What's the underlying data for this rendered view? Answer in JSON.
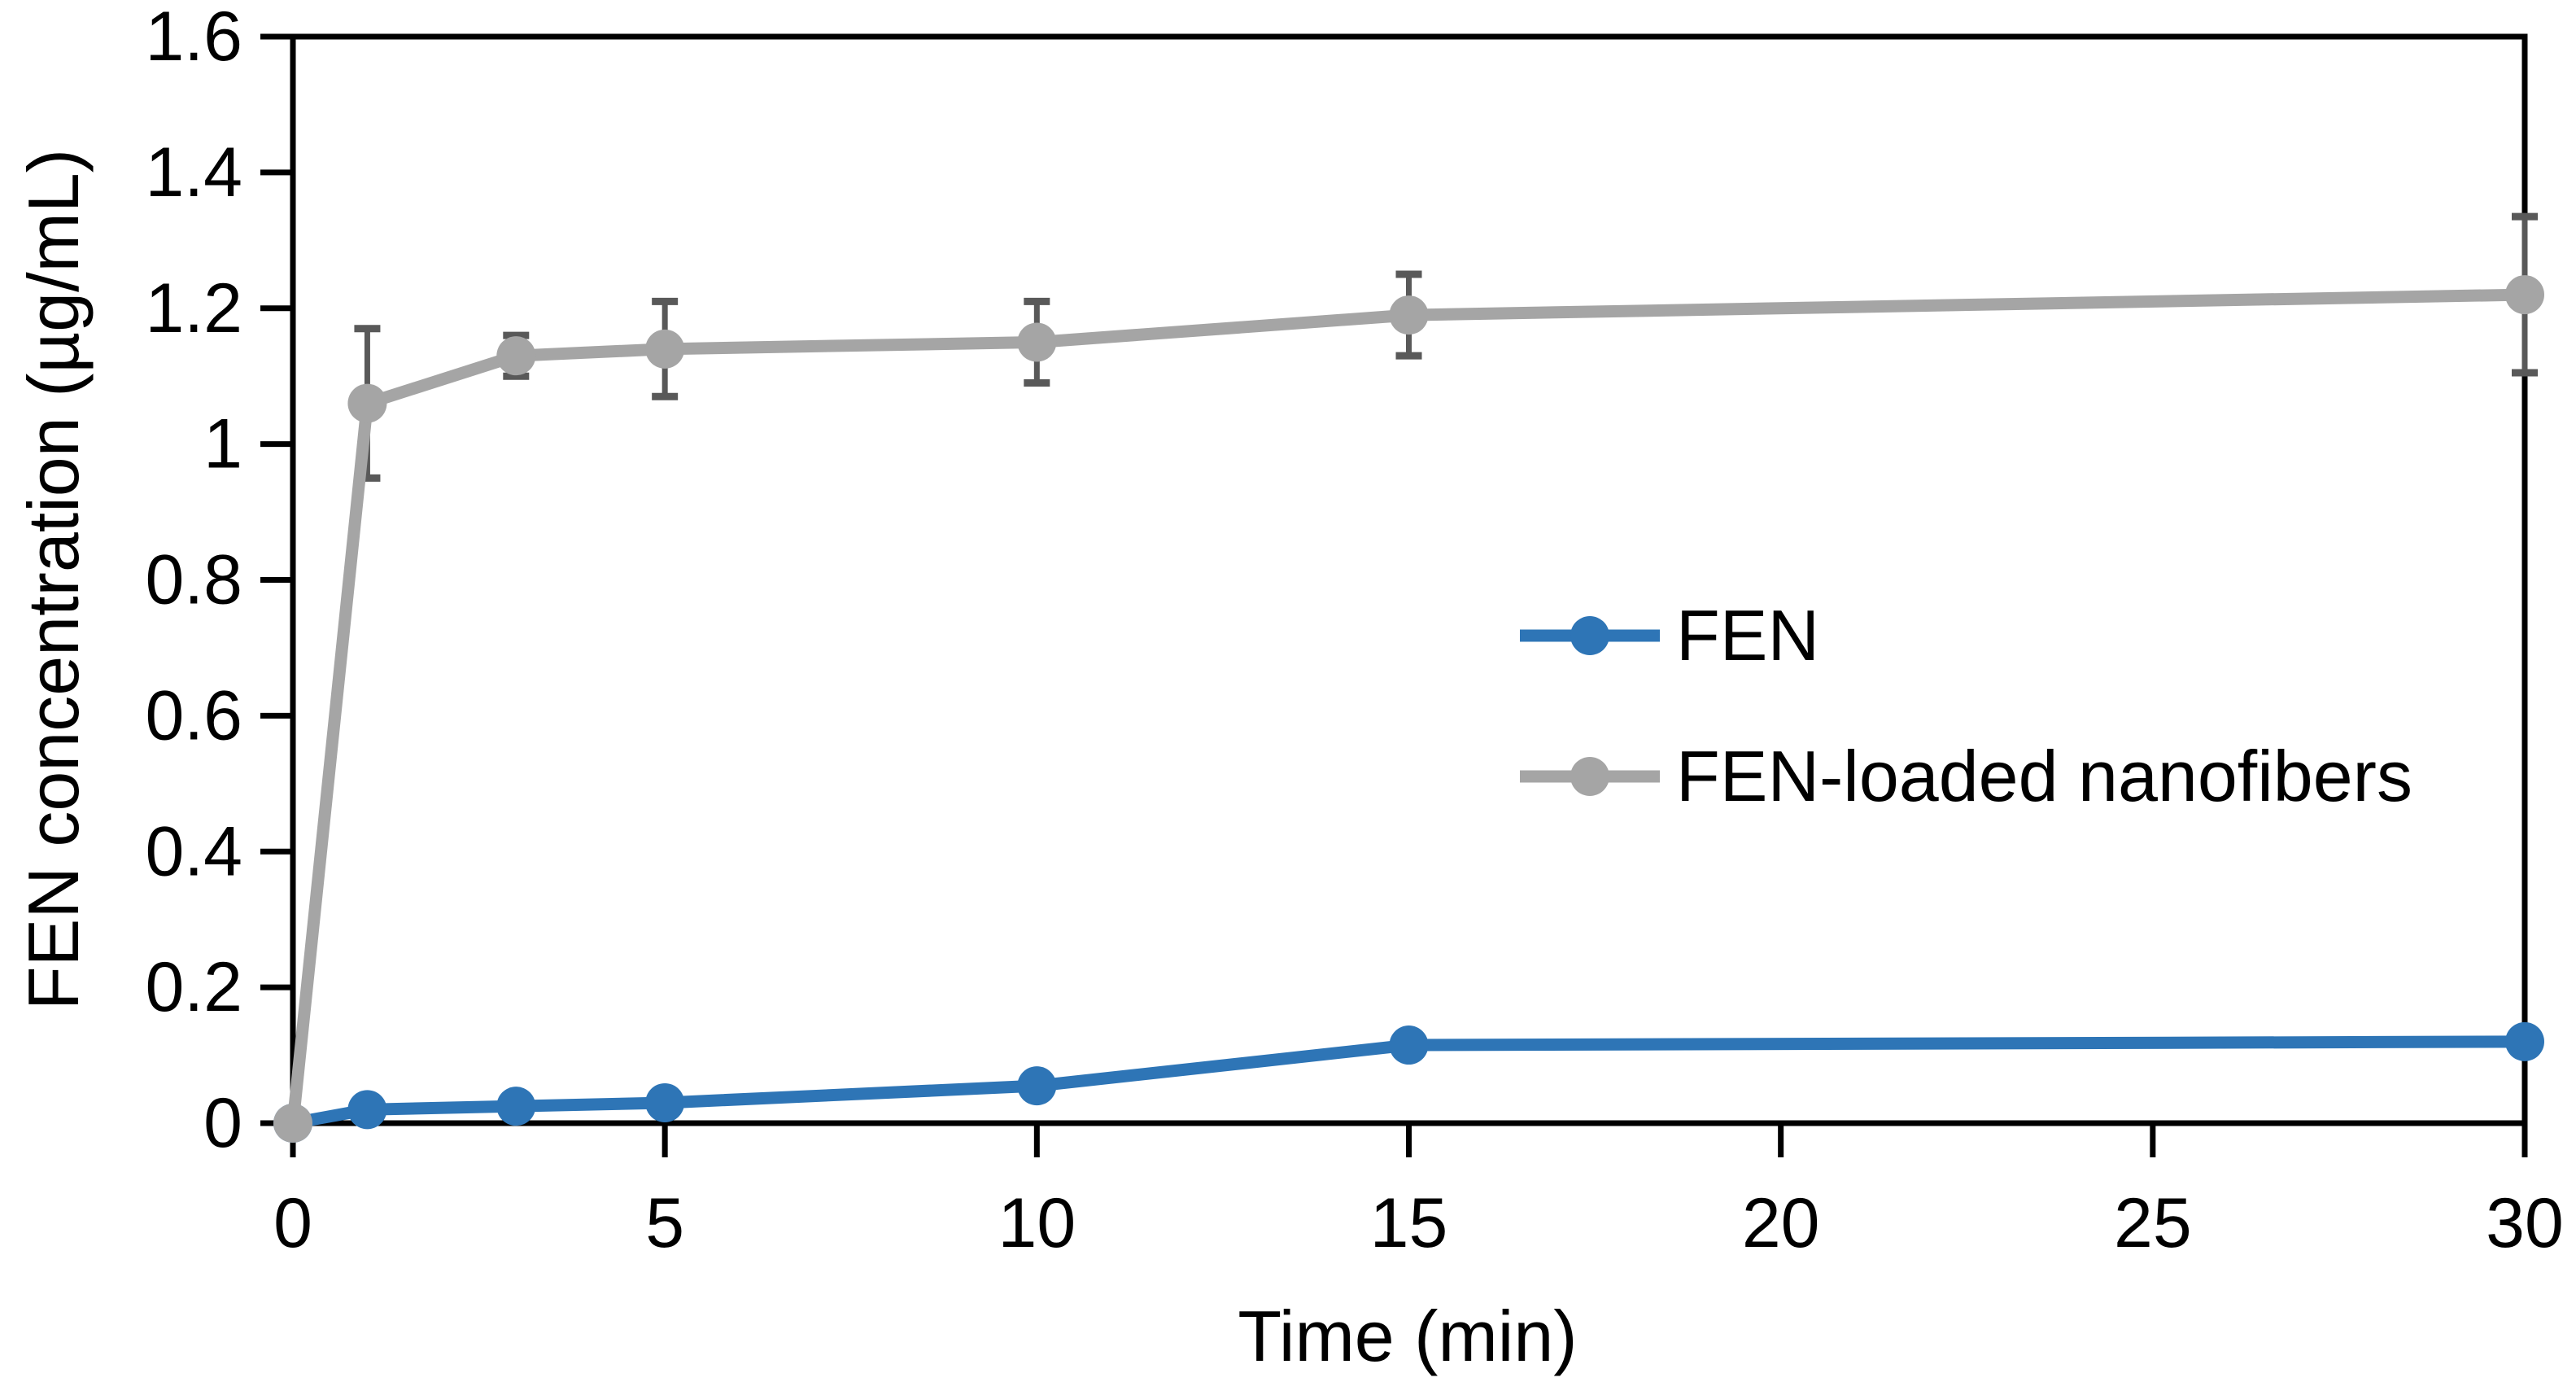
{
  "chart_data": {
    "type": "line",
    "title": "",
    "xlabel": "Time (min)",
    "ylabel": "FEN concentration (µg/mL)",
    "xlim": [
      0,
      30
    ],
    "ylim": [
      0,
      1.6
    ],
    "xticks": [
      0,
      5,
      10,
      15,
      20,
      25,
      30
    ],
    "xtick_labels": [
      "0",
      "5",
      "10",
      "15",
      "20",
      "25",
      "30"
    ],
    "yticks": [
      0,
      0.2,
      0.4,
      0.6,
      0.8,
      1,
      1.2,
      1.4,
      1.6
    ],
    "ytick_labels": [
      "0",
      "0.2",
      "0.4",
      "0.6",
      "0.8",
      "1",
      "1.2",
      "1.4",
      "1.6"
    ],
    "grid": false,
    "plot_border": true,
    "legend_position": "center-right",
    "x": [
      0,
      1,
      3,
      5,
      10,
      15,
      30
    ],
    "series": [
      {
        "name": "FEN",
        "color": "#2E75B6",
        "marker": "circle",
        "values": [
          0,
          0.02,
          0.025,
          0.03,
          0.055,
          0.115,
          0.12
        ]
      },
      {
        "name": "FEN-loaded nanofibers",
        "color": "#A5A5A5",
        "marker": "circle",
        "values": [
          0,
          1.06,
          1.13,
          1.14,
          1.15,
          1.19,
          1.22
        ],
        "errors": [
          0,
          0.11,
          0.03,
          0.07,
          0.06,
          0.06,
          0.115
        ]
      }
    ],
    "error_bar_color": "#595959",
    "axis_color": "#000000"
  }
}
